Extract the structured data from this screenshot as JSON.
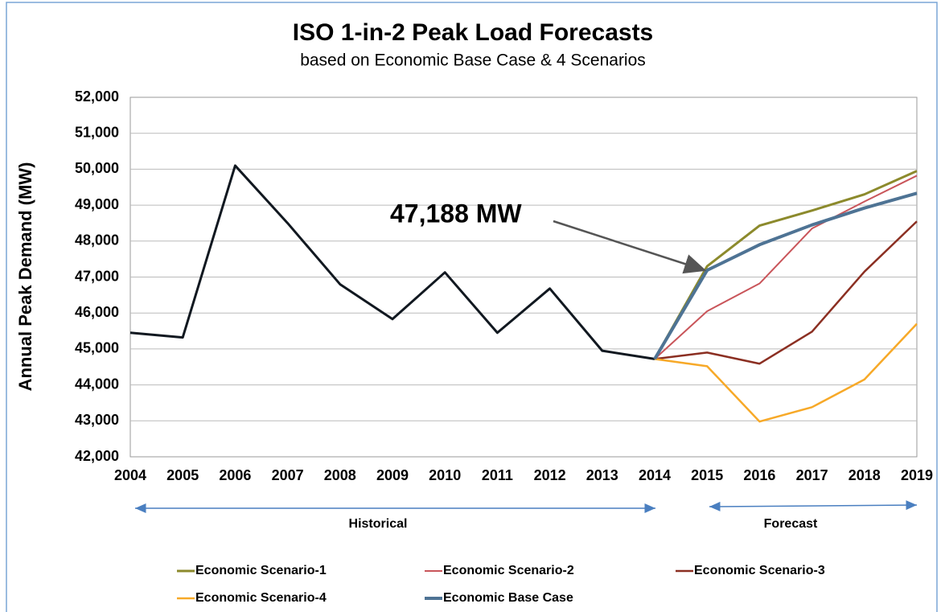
{
  "chart_data": {
    "type": "line",
    "title": "ISO 1-in-2 Peak Load Forecasts",
    "subtitle": "based on Economic Base Case & 4 Scenarios",
    "y_label": "Annual Peak Demand (MW)",
    "annotation": "47,188 MW",
    "period_labels": [
      "Historical",
      "Forecast"
    ],
    "x": [
      2004,
      2005,
      2006,
      2007,
      2008,
      2009,
      2010,
      2011,
      2012,
      2013,
      2014,
      2015,
      2016,
      2017,
      2018,
      2019
    ],
    "xlim": [
      2004,
      2019
    ],
    "xticks": [
      2004,
      2005,
      2006,
      2007,
      2008,
      2009,
      2010,
      2011,
      2012,
      2013,
      2014,
      2015,
      2016,
      2017,
      2018,
      2019
    ],
    "ylim": [
      42000,
      52000
    ],
    "yticks": [
      {
        "value": 42000,
        "label": "42,000"
      },
      {
        "value": 43000,
        "label": "43,000"
      },
      {
        "value": 44000,
        "label": "44,000"
      },
      {
        "value": 45000,
        "label": "45,000"
      },
      {
        "value": 46000,
        "label": "46,000"
      },
      {
        "value": 47000,
        "label": "47,000"
      },
      {
        "value": 48000,
        "label": "48,000"
      },
      {
        "value": 49000,
        "label": "49,000"
      },
      {
        "value": 50000,
        "label": "50,000"
      },
      {
        "value": 51000,
        "label": "51,000"
      },
      {
        "value": 52000,
        "label": "52,000"
      }
    ],
    "grid": true,
    "series": [
      {
        "color": "#111820",
        "width": 3,
        "values": [
          45450,
          45320,
          50100,
          48500,
          46800,
          45830,
          47130,
          45450,
          46680,
          44950,
          44720,
          null,
          null,
          null,
          null,
          null
        ]
      },
      {
        "name": "Economic Scenario-1",
        "color": "#8c8a2c",
        "width": 3,
        "values": [
          null,
          null,
          null,
          null,
          null,
          null,
          null,
          null,
          null,
          null,
          44720,
          47300,
          48430,
          48850,
          49300,
          49950
        ]
      },
      {
        "name": "Economic Scenario-2",
        "color": "#c9555a",
        "width": 2,
        "values": [
          null,
          null,
          null,
          null,
          null,
          null,
          null,
          null,
          null,
          null,
          44720,
          46050,
          46820,
          48350,
          49100,
          49820
        ]
      },
      {
        "name": "Economic Scenario-3",
        "color": "#8b2f22",
        "width": 2.5,
        "values": [
          null,
          null,
          null,
          null,
          null,
          null,
          null,
          null,
          null,
          null,
          44720,
          44900,
          44590,
          45480,
          47150,
          48550
        ]
      },
      {
        "name": "Economic Scenario-4",
        "color": "#f7a928",
        "width": 2.5,
        "values": [
          null,
          null,
          null,
          null,
          null,
          null,
          null,
          null,
          null,
          null,
          44720,
          44520,
          42980,
          43380,
          44150,
          45700
        ]
      },
      {
        "name": "Economic Base Case",
        "color": "#4e7394",
        "width": 4,
        "values": [
          null,
          null,
          null,
          null,
          null,
          null,
          null,
          null,
          null,
          null,
          44720,
          47188,
          47900,
          48450,
          48920,
          49330
        ]
      }
    ]
  }
}
